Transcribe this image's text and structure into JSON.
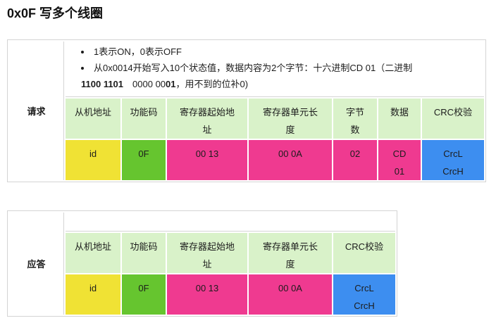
{
  "page_title": "0x0F 写多个线圈",
  "colors": {
    "header_bg": "#d9f2c9",
    "slave_addr_bg": "#f0e234",
    "func_code_bg": "#66c52f",
    "data_field_bg": "#ef3a90",
    "crc_field_bg": "#3d8ef0",
    "border": "#d4d4d4"
  },
  "tables": [
    {
      "id": "request",
      "label": "请求",
      "notes": [
        {
          "lines": [
            [
              {
                "t": "1表示ON，0表示OFF"
              }
            ]
          ]
        },
        {
          "lines": [
            [
              {
                "t": "从0x0014开始写入10个状态值，数据内容为2个字节：十六进制CD 01（二进制"
              }
            ],
            [
              {
                "t": "1100 1101",
                "b": true
              },
              {
                "t": "　0000 00"
              },
              {
                "t": "01",
                "b": true
              },
              {
                "t": "，用不到的位补0)"
              }
            ]
          ]
        }
      ],
      "columns": [
        {
          "header": [
            "从机地址"
          ],
          "value": [
            "id"
          ],
          "color_key": "slave_addr_bg"
        },
        {
          "header": [
            "功能码"
          ],
          "value": [
            "0F"
          ],
          "color_key": "func_code_bg"
        },
        {
          "header": [
            "寄存器起始地",
            "址"
          ],
          "value": [
            "00 13"
          ],
          "color_key": "data_field_bg"
        },
        {
          "header": [
            "寄存器单元长",
            "度"
          ],
          "value": [
            "00 0A"
          ],
          "color_key": "data_field_bg"
        },
        {
          "header": [
            "字节",
            "数"
          ],
          "value": [
            "02"
          ],
          "color_key": "data_field_bg"
        },
        {
          "header": [
            "数据"
          ],
          "value": [
            "CD",
            "01"
          ],
          "color_key": "data_field_bg"
        },
        {
          "header": [
            "CRC校验"
          ],
          "value": [
            "CrcL",
            "CrcH"
          ],
          "color_key": "crc_field_bg"
        }
      ]
    },
    {
      "id": "response",
      "label": "应答",
      "notes": [],
      "columns": [
        {
          "header": [
            "从机地址"
          ],
          "value": [
            "id"
          ],
          "color_key": "slave_addr_bg"
        },
        {
          "header": [
            "功能码"
          ],
          "value": [
            "0F"
          ],
          "color_key": "func_code_bg"
        },
        {
          "header": [
            "寄存器起始地",
            "址"
          ],
          "value": [
            "00 13"
          ],
          "color_key": "data_field_bg"
        },
        {
          "header": [
            "寄存器单元长",
            "度"
          ],
          "value": [
            "00 0A"
          ],
          "color_key": "data_field_bg"
        },
        {
          "header": [
            "CRC校验"
          ],
          "value": [
            "CrcL",
            "CrcH"
          ],
          "color_key": "crc_field_bg"
        }
      ]
    }
  ]
}
